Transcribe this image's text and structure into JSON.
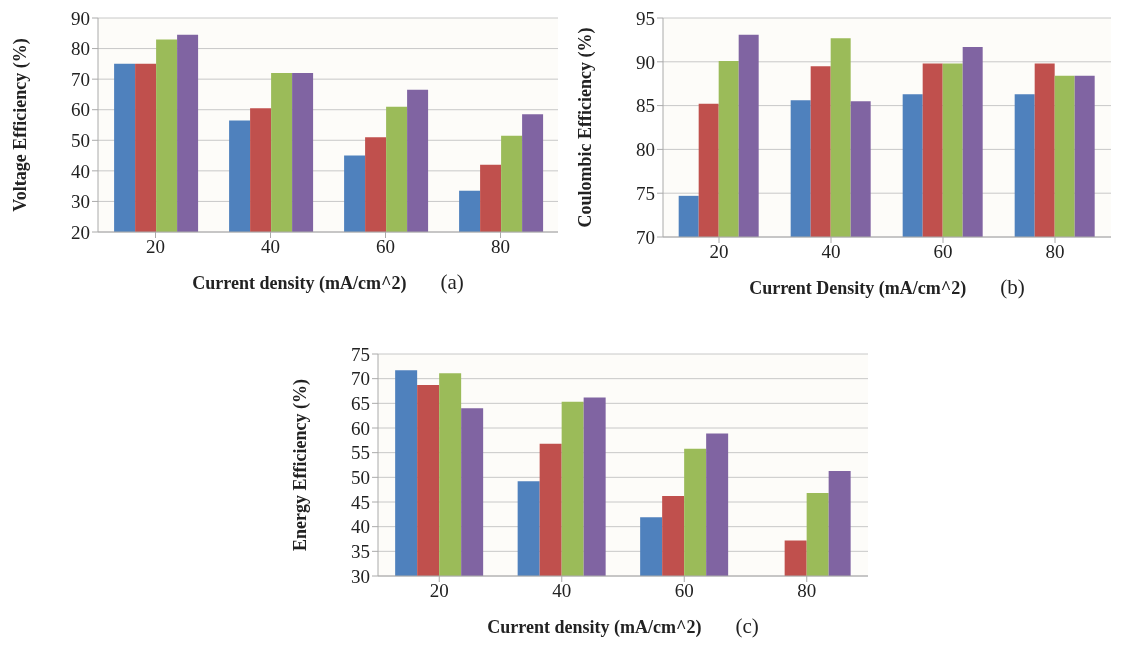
{
  "chart_data": [
    {
      "type": "bar",
      "xlabel": "Current density (mA/cm^2)",
      "ylabel": "Voltage Efficiency (%)",
      "annotations": [
        "(a)"
      ],
      "categories": [
        "20",
        "40",
        "60",
        "80"
      ],
      "ylim": [
        20,
        90
      ],
      "yticks": [
        20,
        30,
        40,
        50,
        60,
        70,
        80,
        90
      ],
      "grid": "y",
      "series": [
        {
          "color": "#4f81bd",
          "values": [
            75,
            56.5,
            45,
            33.5
          ]
        },
        {
          "color": "#c0504d",
          "values": [
            75,
            60.5,
            51,
            42
          ]
        },
        {
          "color": "#9bbb59",
          "values": [
            83,
            72,
            61,
            51.5
          ]
        },
        {
          "color": "#8064a2",
          "values": [
            84.5,
            72,
            66.5,
            58.5
          ]
        }
      ]
    },
    {
      "type": "bar",
      "xlabel": "Current Density (mA/cm^2)",
      "ylabel": "Coulombic Efficiency (%)",
      "annotations": [
        "(b)"
      ],
      "categories": [
        "20",
        "40",
        "60",
        "80"
      ],
      "ylim": [
        70,
        95
      ],
      "yticks": [
        70,
        75,
        80,
        85,
        90,
        95
      ],
      "grid": "y",
      "series": [
        {
          "color": "#4f81bd",
          "values": [
            74.7,
            85.6,
            86.3,
            86.3
          ]
        },
        {
          "color": "#c0504d",
          "values": [
            85.2,
            89.5,
            89.8,
            89.8
          ]
        },
        {
          "color": "#9bbb59",
          "values": [
            90.1,
            92.7,
            89.8,
            88.4
          ]
        },
        {
          "color": "#8064a2",
          "values": [
            93.1,
            85.5,
            91.7,
            88.4
          ]
        }
      ]
    },
    {
      "type": "bar",
      "xlabel": "Current density (mA/cm^2)",
      "ylabel": "Energy Efficiency (%)",
      "annotations": [
        "(c)"
      ],
      "categories": [
        "20",
        "40",
        "60",
        "80"
      ],
      "ylim": [
        30,
        75
      ],
      "yticks": [
        30,
        35,
        40,
        45,
        50,
        55,
        60,
        65,
        70,
        75
      ],
      "grid": "y",
      "series": [
        {
          "color": "#4f81bd",
          "values": [
            71.7,
            49.2,
            41.9,
            null
          ]
        },
        {
          "color": "#c0504d",
          "values": [
            68.7,
            56.8,
            46.2,
            37.2
          ]
        },
        {
          "color": "#9bbb59",
          "values": [
            71.1,
            65.3,
            55.8,
            46.8
          ]
        },
        {
          "color": "#8064a2",
          "values": [
            64,
            66.2,
            58.9,
            51.3
          ]
        }
      ]
    }
  ]
}
